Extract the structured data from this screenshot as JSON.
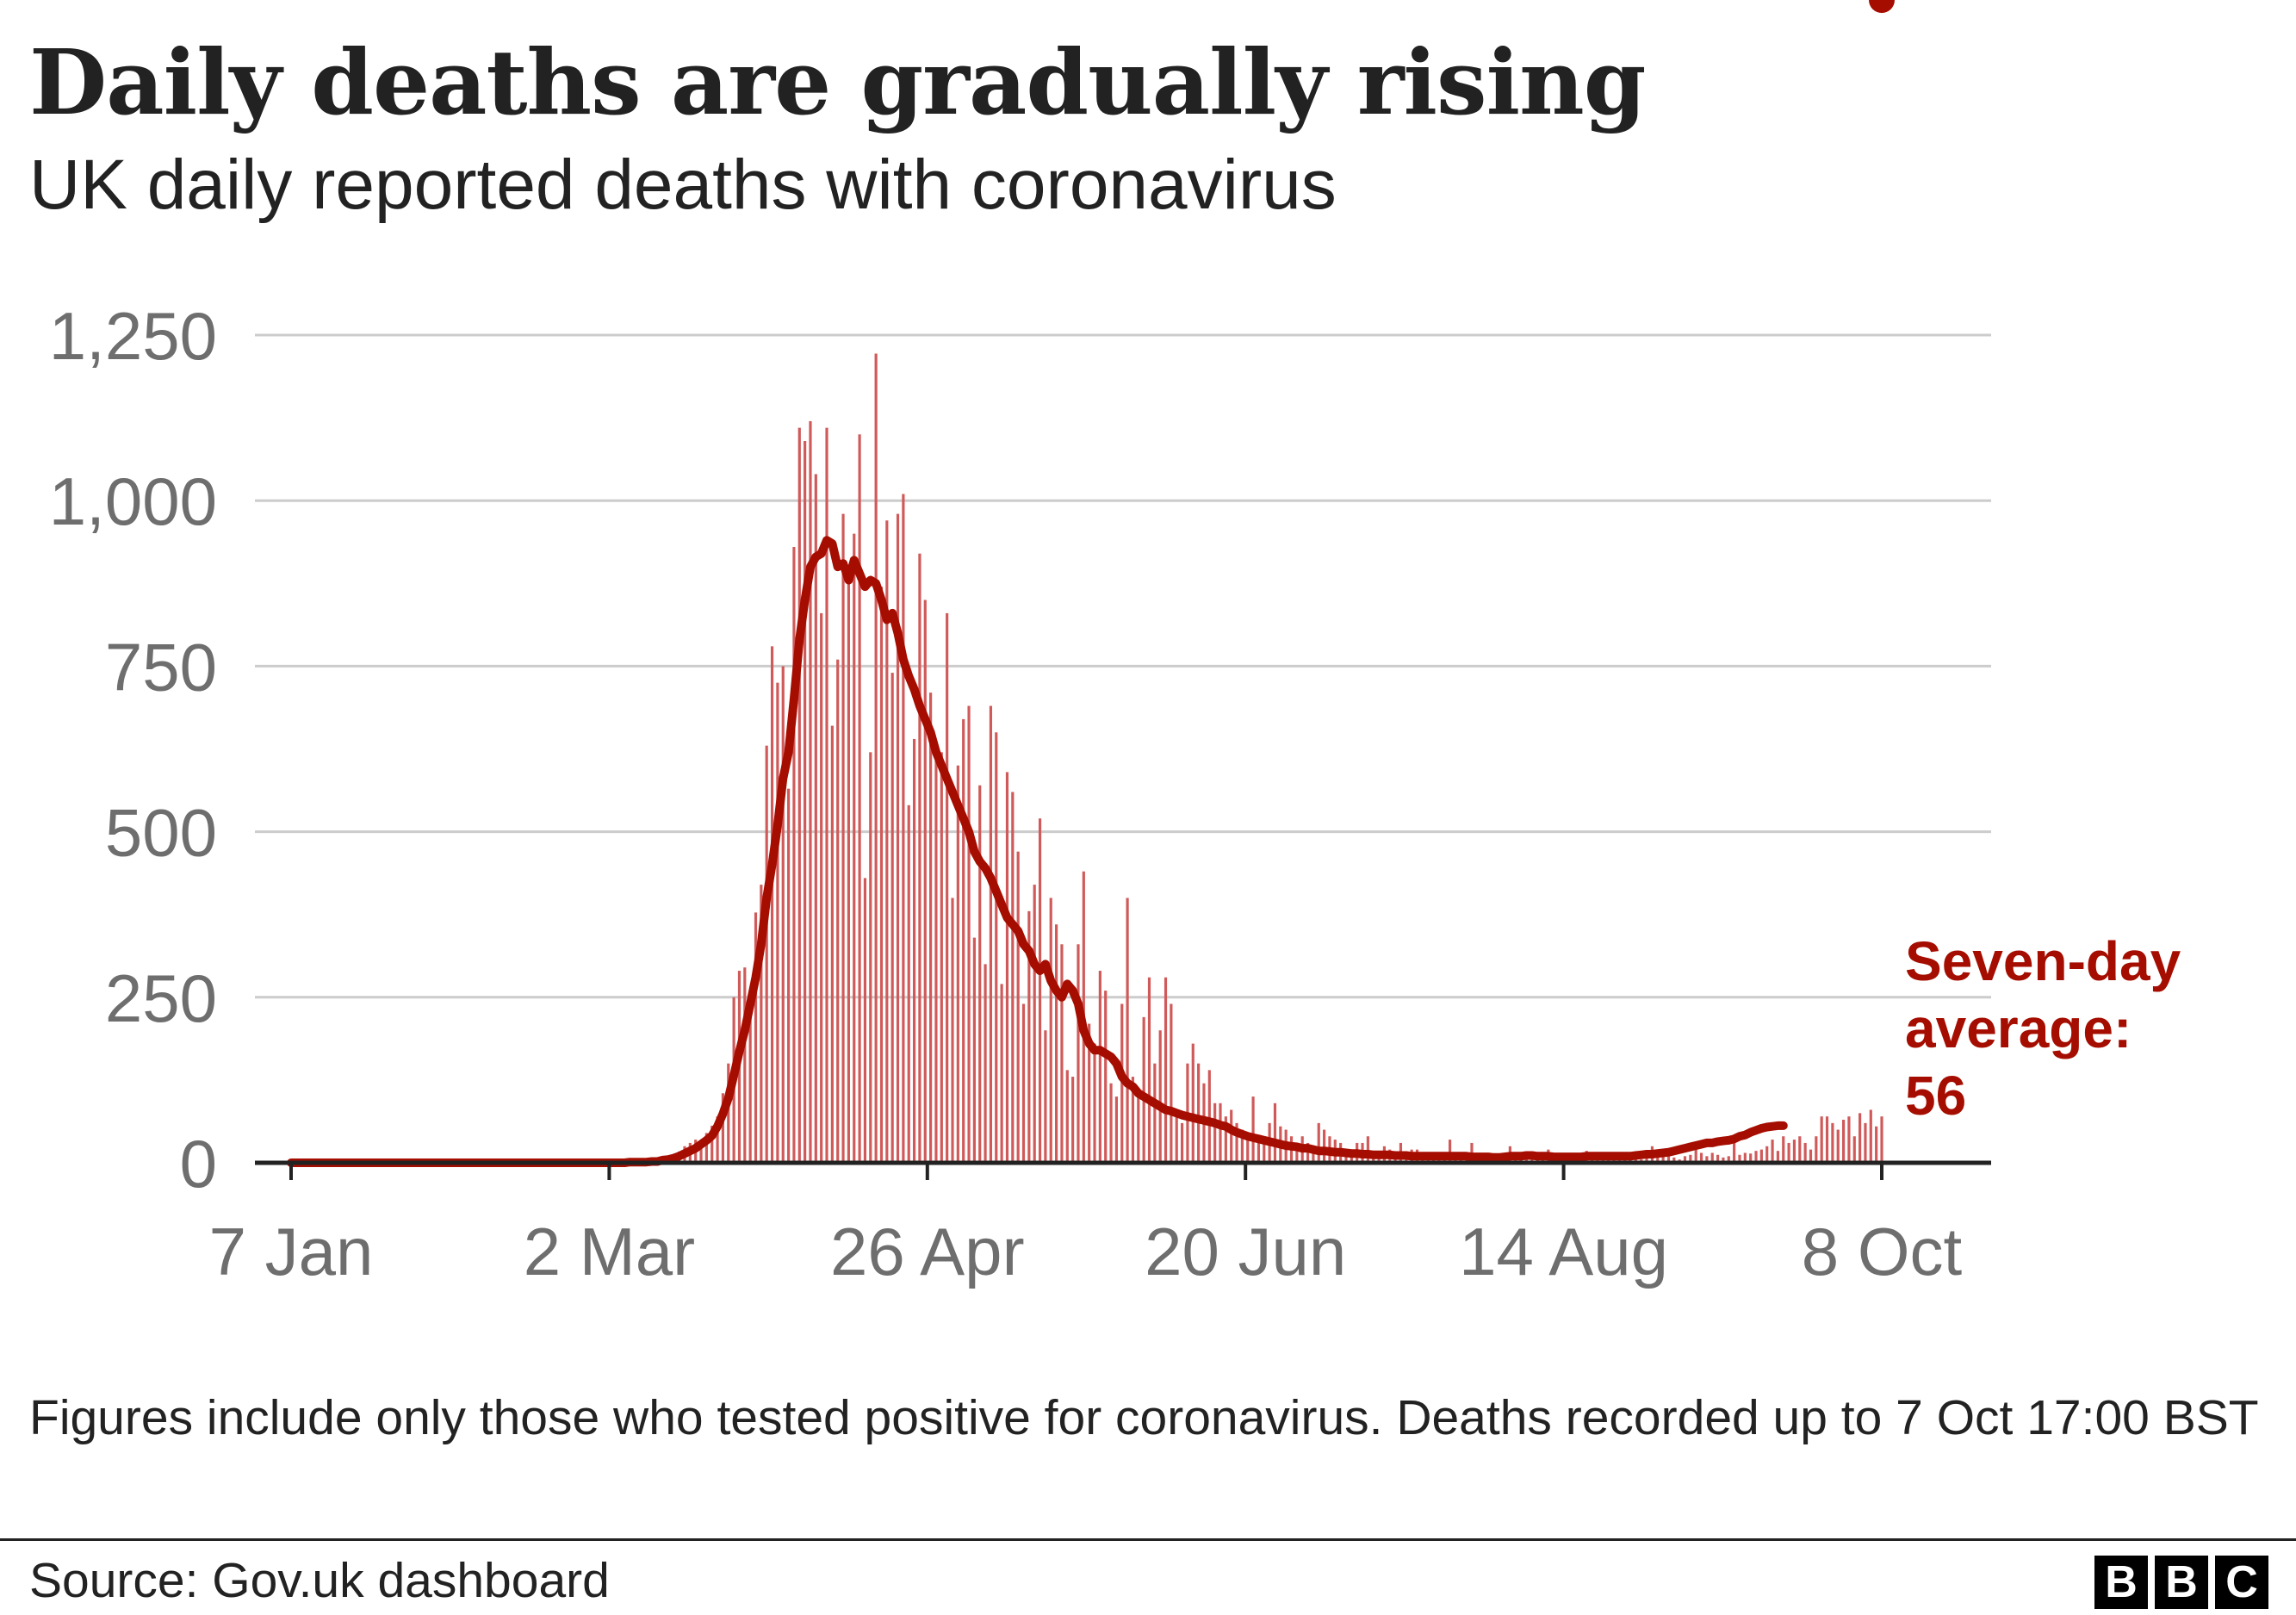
{
  "header": {
    "title": "Daily deaths are gradually rising",
    "subtitle": "UK daily reported deaths with coronavirus"
  },
  "chart_data": {
    "type": "bar",
    "title": "Daily deaths are gradually rising",
    "subtitle": "UK daily reported deaths with coronavirus",
    "xlabel": "",
    "ylabel": "",
    "ylim": [
      0,
      1250
    ],
    "yticks": [
      0,
      250,
      500,
      750,
      1000,
      1250
    ],
    "ytick_labels": [
      "0",
      "250",
      "500",
      "750",
      "1,000",
      "1,250"
    ],
    "xticks": [
      "7 Jan",
      "2 Mar",
      "26 Apr",
      "20 Jun",
      "14 Aug",
      "8 Oct"
    ],
    "grid": true,
    "start_date": "7 Jan",
    "end_date": "8 Oct",
    "series": [
      {
        "name": "Daily reported deaths",
        "color": "#d05a5a",
        "values": [
          0,
          0,
          0,
          0,
          0,
          0,
          0,
          0,
          0,
          0,
          0,
          0,
          0,
          0,
          0,
          0,
          0,
          0,
          0,
          0,
          0,
          0,
          0,
          0,
          0,
          0,
          0,
          0,
          0,
          0,
          0,
          0,
          0,
          0,
          0,
          0,
          0,
          0,
          0,
          0,
          0,
          0,
          0,
          0,
          0,
          0,
          0,
          0,
          0,
          0,
          0,
          0,
          0,
          0,
          0,
          0,
          0,
          0,
          0,
          0,
          0,
          1,
          0,
          1,
          2,
          2,
          0,
          4,
          2,
          8,
          6,
          17,
          25,
          30,
          35,
          30,
          45,
          56,
          70,
          105,
          150,
          250,
          290,
          295,
          260,
          378,
          420,
          630,
          780,
          725,
          750,
          565,
          930,
          1110,
          1090,
          1120,
          1040,
          830,
          1110,
          660,
          760,
          980,
          880,
          950,
          1100,
          430,
          620,
          1222,
          870,
          970,
          740,
          980,
          1010,
          540,
          640,
          920,
          850,
          710,
          620,
          620,
          830,
          400,
          600,
          670,
          690,
          340,
          570,
          300,
          690,
          650,
          270,
          590,
          560,
          470,
          240,
          380,
          420,
          520,
          200,
          400,
          360,
          330,
          140,
          130,
          330,
          440,
          210,
          180,
          290,
          260,
          120,
          100,
          240,
          400,
          130,
          110,
          220,
          280,
          150,
          200,
          280,
          240,
          70,
          60,
          150,
          180,
          150,
          120,
          140,
          90,
          90,
          70,
          80,
          60,
          50,
          40,
          100,
          30,
          30,
          60,
          90,
          55,
          50,
          40,
          30,
          40,
          30,
          20,
          60,
          50,
          40,
          35,
          30,
          20,
          20,
          30,
          30,
          40,
          15,
          15,
          25,
          20,
          15,
          30,
          10,
          20,
          20,
          15,
          12,
          10,
          8,
          10,
          35,
          10,
          10,
          10,
          30,
          10,
          15,
          10,
          12,
          8,
          10,
          25,
          10,
          15,
          10,
          8,
          5,
          10,
          20,
          8,
          10,
          12,
          10,
          5,
          15,
          18,
          10,
          10,
          8,
          12,
          5,
          10,
          15,
          10,
          8,
          5,
          10,
          25,
          10,
          15,
          10,
          8,
          5,
          10,
          12,
          20,
          15,
          10,
          15,
          12,
          8,
          10,
          32,
          12,
          15,
          14,
          18,
          20,
          25,
          35,
          18,
          40,
          30,
          35,
          40,
          30,
          20,
          40,
          70,
          70,
          60,
          50,
          65,
          70,
          40,
          75,
          60,
          80,
          55,
          70
        ]
      },
      {
        "name": "Seven-day average",
        "color": "#a50d00",
        "values": [
          0,
          0,
          0,
          0,
          0,
          0,
          0,
          0,
          0,
          0,
          0,
          0,
          0,
          0,
          0,
          0,
          0,
          0,
          0,
          0,
          0,
          0,
          0,
          0,
          0,
          0,
          0,
          0,
          0,
          0,
          0,
          0,
          0,
          0,
          0,
          0,
          0,
          0,
          0,
          0,
          0,
          0,
          0,
          0,
          0,
          0,
          0,
          0,
          0,
          0,
          0,
          0,
          0,
          0,
          0,
          0,
          0,
          0,
          0,
          0,
          0,
          0,
          1,
          1,
          1,
          1,
          2,
          2,
          4,
          5,
          7,
          10,
          14,
          18,
          22,
          28,
          34,
          41,
          55,
          74,
          98,
          132,
          168,
          200,
          240,
          280,
          330,
          400,
          450,
          510,
          580,
          620,
          700,
          790,
          850,
          900,
          915,
          920,
          940,
          935,
          900,
          905,
          880,
          910,
          890,
          870,
          880,
          875,
          850,
          820,
          830,
          800,
          760,
          735,
          715,
          690,
          670,
          650,
          620,
          600,
          580,
          560,
          540,
          520,
          500,
          470,
          455,
          445,
          430,
          410,
          390,
          370,
          360,
          350,
          330,
          320,
          300,
          290,
          300,
          275,
          260,
          250,
          270,
          260,
          240,
          200,
          180,
          170,
          170,
          165,
          160,
          150,
          130,
          120,
          115,
          105,
          100,
          95,
          90,
          85,
          80,
          78,
          75,
          72,
          70,
          68,
          66,
          64,
          62,
          60,
          57,
          55,
          50,
          46,
          43,
          40,
          38,
          36,
          34,
          32,
          30,
          28,
          26,
          25,
          24,
          22,
          22,
          20,
          18,
          18,
          17,
          16,
          16,
          15,
          14,
          14,
          13,
          13,
          12,
          12,
          12,
          12,
          11,
          11,
          11,
          10,
          10,
          10,
          10,
          10,
          10,
          10,
          10,
          10,
          10,
          10,
          9,
          9,
          9,
          9,
          8,
          8,
          9,
          10,
          10,
          10,
          11,
          11,
          10,
          10,
          10,
          9,
          9,
          9,
          9,
          9,
          9,
          10,
          10,
          10,
          10,
          10,
          10,
          10,
          10,
          10,
          11,
          12,
          13,
          13,
          14,
          15,
          16,
          18,
          20,
          22,
          24,
          26,
          28,
          30,
          30,
          32,
          33,
          34,
          36,
          40,
          42,
          46,
          49,
          52,
          54,
          55,
          56,
          56
        ],
        "final_label": "Seven-day average: 56"
      }
    ],
    "annotation": {
      "line1": "Seven-day",
      "line2": "average:",
      "line3": "56"
    }
  },
  "footer": {
    "note": "Figures include only those who tested positive for coronavirus. Deaths recorded up to 7 Oct 17:00 BST",
    "source": "Source: Gov.uk dashboard",
    "logo": [
      "B",
      "B",
      "C"
    ]
  },
  "colors": {
    "bar": "#d05a5a",
    "average": "#a50d00",
    "grid": "#cccccc",
    "axis": "#222222",
    "tick_text": "#6e6e6e"
  }
}
